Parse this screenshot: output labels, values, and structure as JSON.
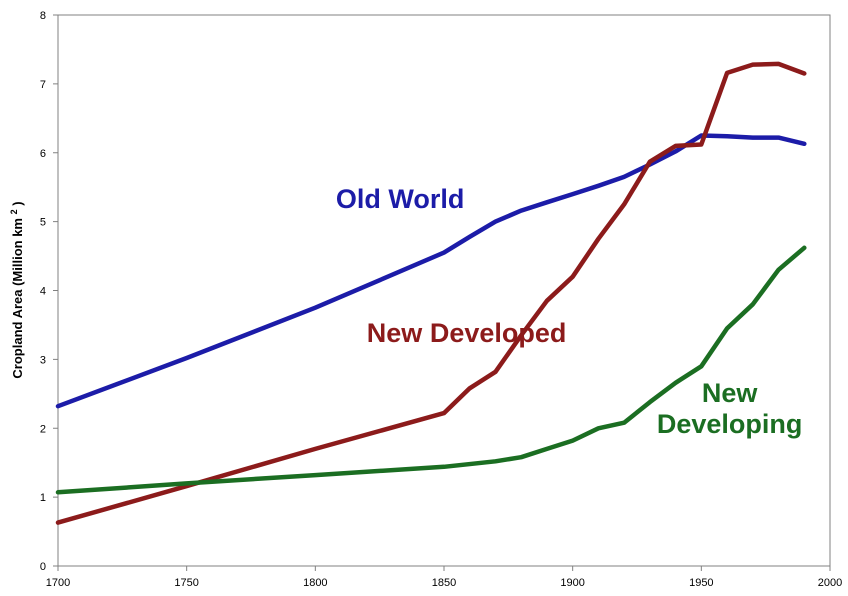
{
  "chart_data": {
    "type": "line",
    "title": "",
    "xlabel": "",
    "ylabel": {
      "text": "Cropland Area (Million km",
      "superscript": "2",
      "suffix": ")"
    },
    "xlim": [
      1700,
      2000
    ],
    "ylim": [
      0,
      8
    ],
    "x_ticks": [
      1700,
      1750,
      1800,
      1850,
      1900,
      1950,
      2000
    ],
    "y_ticks": [
      0,
      1,
      2,
      3,
      4,
      5,
      6,
      7,
      8
    ],
    "grid": false,
    "series": [
      {
        "name": "Old World",
        "color": "#1c1ca8",
        "points": [
          [
            1700,
            2.32
          ],
          [
            1750,
            3.02
          ],
          [
            1800,
            3.75
          ],
          [
            1850,
            4.55
          ],
          [
            1860,
            4.78
          ],
          [
            1870,
            5.0
          ],
          [
            1880,
            5.16
          ],
          [
            1890,
            5.28
          ],
          [
            1900,
            5.4
          ],
          [
            1910,
            5.52
          ],
          [
            1920,
            5.65
          ],
          [
            1930,
            5.83
          ],
          [
            1940,
            6.02
          ],
          [
            1950,
            6.25
          ],
          [
            1960,
            6.24
          ],
          [
            1970,
            6.22
          ],
          [
            1980,
            6.22
          ],
          [
            1990,
            6.13
          ]
        ]
      },
      {
        "name": "New Developed",
        "color": "#8c1b1b",
        "points": [
          [
            1700,
            0.63
          ],
          [
            1750,
            1.16
          ],
          [
            1800,
            1.7
          ],
          [
            1850,
            2.22
          ],
          [
            1860,
            2.58
          ],
          [
            1870,
            2.82
          ],
          [
            1880,
            3.35
          ],
          [
            1890,
            3.85
          ],
          [
            1900,
            4.2
          ],
          [
            1910,
            4.75
          ],
          [
            1920,
            5.25
          ],
          [
            1930,
            5.87
          ],
          [
            1940,
            6.1
          ],
          [
            1950,
            6.12
          ],
          [
            1960,
            7.16
          ],
          [
            1970,
            7.28
          ],
          [
            1980,
            7.29
          ],
          [
            1990,
            7.15
          ]
        ]
      },
      {
        "name": "New Developing",
        "color": "#1b6e22",
        "points": [
          [
            1700,
            1.07
          ],
          [
            1750,
            1.2
          ],
          [
            1800,
            1.32
          ],
          [
            1850,
            1.44
          ],
          [
            1870,
            1.52
          ],
          [
            1880,
            1.58
          ],
          [
            1890,
            1.7
          ],
          [
            1900,
            1.82
          ],
          [
            1910,
            2.0
          ],
          [
            1920,
            2.08
          ],
          [
            1930,
            2.38
          ],
          [
            1940,
            2.66
          ],
          [
            1950,
            2.9
          ],
          [
            1960,
            3.45
          ],
          [
            1970,
            3.8
          ],
          [
            1980,
            4.3
          ],
          [
            1990,
            4.62
          ]
        ]
      }
    ],
    "annotations": [
      {
        "text": "Old World",
        "series": "Old World",
        "x": 1808,
        "y": 5.2,
        "anchor": "start"
      },
      {
        "text": "New Developed",
        "series": "New Developed",
        "x": 1820,
        "y": 3.25,
        "anchor": "start"
      },
      {
        "text": "New",
        "series": "New Developing",
        "x": 1961,
        "y": 2.38,
        "anchor": "middle"
      },
      {
        "text": "Developing",
        "series": "New Developing",
        "x": 1961,
        "y": 1.93,
        "anchor": "middle"
      }
    ]
  }
}
